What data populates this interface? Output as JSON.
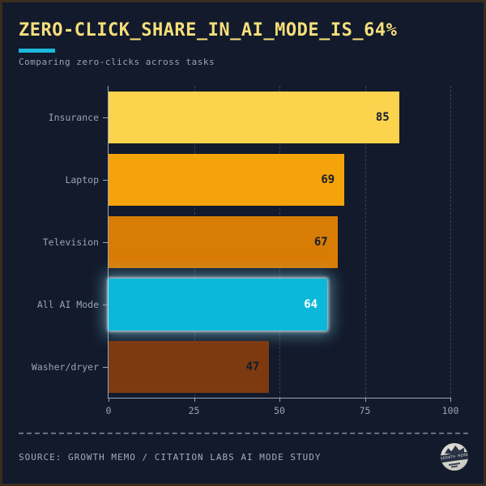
{
  "header": {
    "title": "ZERO-CLICK_SHARE_IN_AI_MODE_IS_64%",
    "subtitle": "Comparing zero-clicks across tasks"
  },
  "chart_data": {
    "type": "bar",
    "orientation": "horizontal",
    "title": "ZERO-CLICK_SHARE_IN_AI_MODE_IS_64%",
    "subtitle": "Comparing zero-clicks across tasks",
    "categories": [
      "Insurance",
      "Laptop",
      "Television",
      "All AI Mode",
      "Washer/dryer"
    ],
    "values": [
      85,
      69,
      67,
      64,
      47
    ],
    "bar_colors": [
      "#fcd34d",
      "#f5a30b",
      "#d97c06",
      "#0cb8d9",
      "#7d3a11"
    ],
    "value_label_colors": [
      "#141d2c",
      "#141d2c",
      "#141d2c",
      "#ffffff",
      "#141d2c"
    ],
    "highlight_index": 3,
    "highlight_color": "#0cb8d9",
    "xlim": [
      0,
      100
    ],
    "xticks": [
      0,
      25,
      50,
      75,
      100
    ],
    "grid": "vertical-dashed",
    "xlabel": "",
    "ylabel": ""
  },
  "colors": {
    "background": "#121a2c",
    "frame_border": "#3a2c1e",
    "title": "#f6de7a",
    "accent": "#1bb9da",
    "muted_text": "#9aa4b4",
    "axis": "#9ca7b8"
  },
  "footer": {
    "source": "SOURCE: GROWTH MEMO / CITATION LABS AI MODE STUDY",
    "badge_text": "GROWTH MEMO"
  }
}
